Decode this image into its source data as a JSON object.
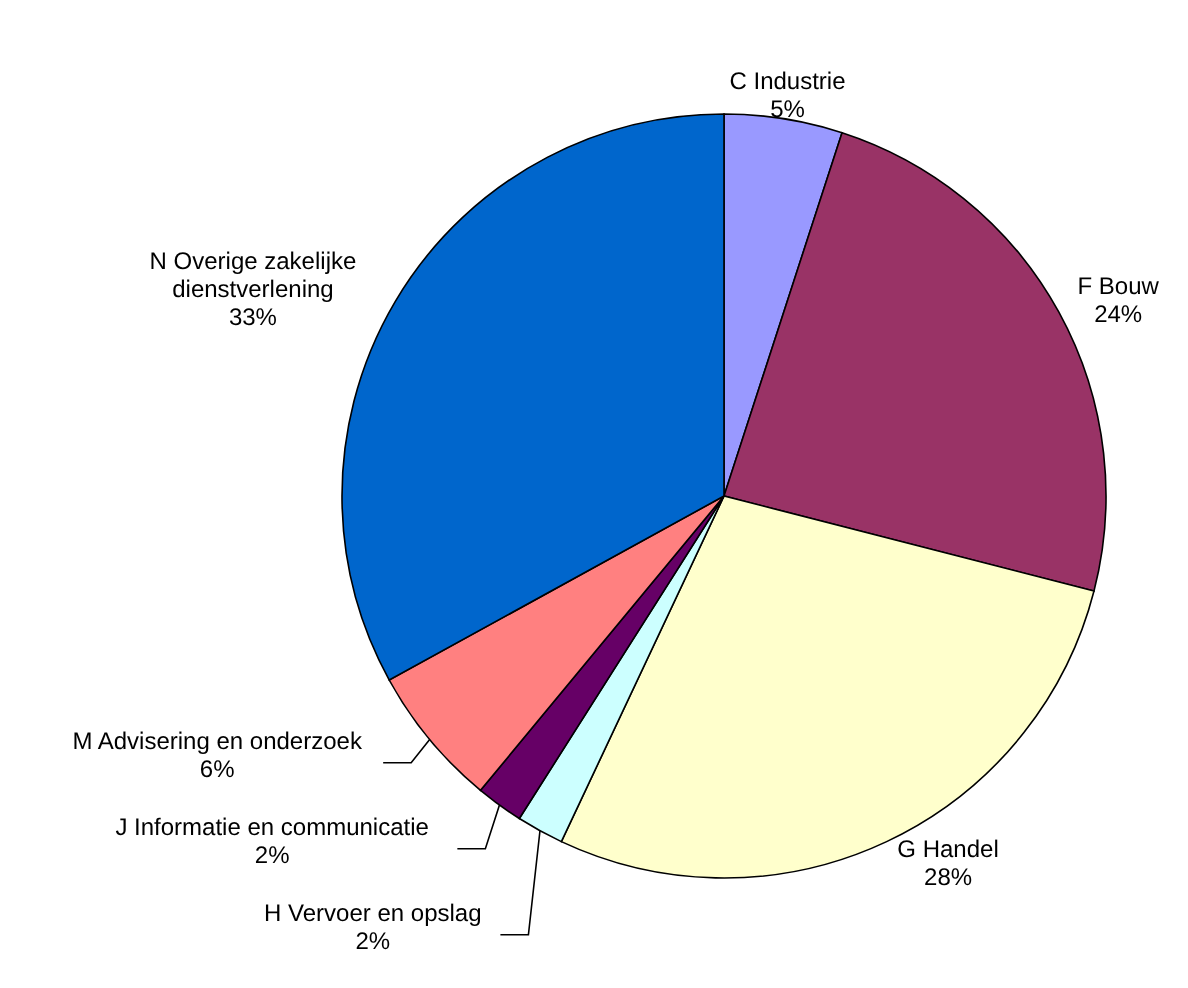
{
  "chart_data": {
    "type": "pie",
    "categories": [
      "C Industrie",
      "F Bouw",
      "G Handel",
      "H Vervoer en opslag",
      "J Informatie en communicatie",
      "M Advisering en onderzoek",
      "N Overige zakelijke dienstverlening"
    ],
    "values": [
      5,
      24,
      28,
      2,
      2,
      6,
      33
    ],
    "value_labels": [
      "5%",
      "24%",
      "28%",
      "2%",
      "2%",
      "6%",
      "33%"
    ],
    "colors": [
      "#9999ff",
      "#993366",
      "#ffffcc",
      "#ccffff",
      "#660066",
      "#ff8080",
      "#0066cc"
    ]
  }
}
